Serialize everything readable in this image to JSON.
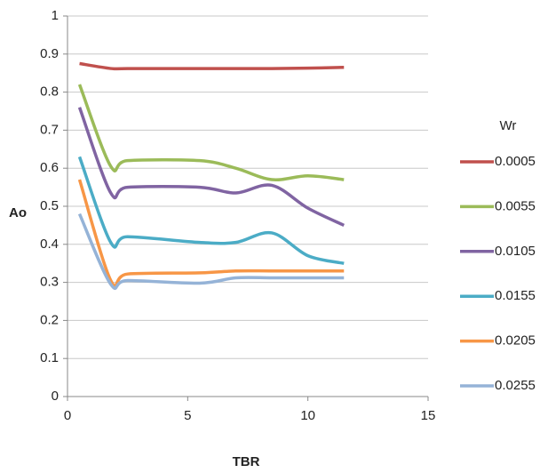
{
  "chart_data": {
    "type": "line",
    "x_label": "TBR",
    "y_label": "Ao",
    "legend_title": "Wr",
    "x": [
      0.5,
      1.8,
      2.5,
      5.5,
      7,
      8.5,
      10,
      11.5
    ],
    "series": [
      {
        "name": "0.0005",
        "color": "#c0504d",
        "values": [
          0.875,
          0.862,
          0.862,
          0.862,
          0.862,
          0.862,
          0.863,
          0.865
        ]
      },
      {
        "name": "0.0055",
        "color": "#9bbb59",
        "values": [
          0.82,
          0.605,
          0.62,
          0.62,
          0.6,
          0.57,
          0.58,
          0.57
        ]
      },
      {
        "name": "0.0105",
        "color": "#8064a2",
        "values": [
          0.76,
          0.535,
          0.55,
          0.55,
          0.535,
          0.555,
          0.495,
          0.45
        ]
      },
      {
        "name": "0.0155",
        "color": "#4bacc6",
        "values": [
          0.63,
          0.405,
          0.42,
          0.405,
          0.405,
          0.43,
          0.37,
          0.35
        ]
      },
      {
        "name": "0.0205",
        "color": "#f79646",
        "values": [
          0.57,
          0.305,
          0.322,
          0.325,
          0.33,
          0.33,
          0.33,
          0.33
        ]
      },
      {
        "name": "0.0255",
        "color": "#95b3d7",
        "values": [
          0.48,
          0.295,
          0.305,
          0.298,
          0.312,
          0.312,
          0.312,
          0.312
        ]
      }
    ],
    "xlim": [
      0,
      15
    ],
    "xticks": [
      0,
      5,
      10,
      15
    ],
    "ylim": [
      0,
      1
    ],
    "yticks": [
      0,
      0.1,
      0.2,
      0.3,
      0.4,
      0.5,
      0.6,
      0.7,
      0.8,
      0.9,
      1
    ],
    "grid": true,
    "legend": "right"
  }
}
